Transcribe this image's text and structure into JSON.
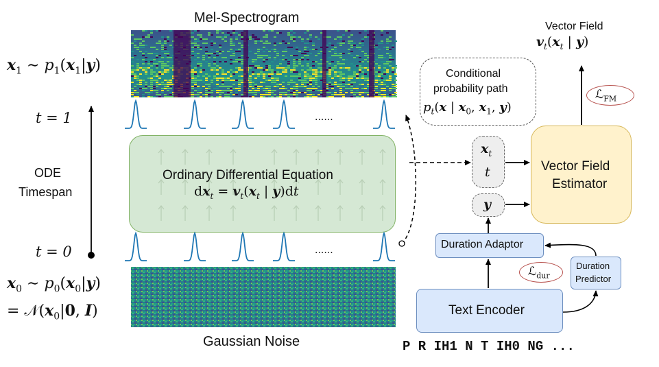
{
  "spectrogram": {
    "title": "Mel-Spectrogram",
    "colors": [
      "#440154",
      "#3b528b",
      "#21918c",
      "#5ec962",
      "#fde725"
    ]
  },
  "noise": {
    "label": "Gaussian Noise"
  },
  "left_math": {
    "x1": "x",
    "x1_sub": "1",
    "x1_rest": " ∼ p",
    "x1_sub2": "1",
    "x1_tail": "(x",
    "x1_sub3": "1",
    "x1_end": "|y)",
    "t1": "t = 1",
    "t0": "t = 0",
    "ode": "ODE",
    "timespan": "Timespan",
    "x0_line1": "x₀ ∼ p₀(x₀|y)",
    "x0_line2": "= 𝒩(x₀|0, I)"
  },
  "ode_box": {
    "title": "Ordinary Differential Equation",
    "equation": "dx_t = v_t(x_t | y)dt",
    "fill": "#d5e8d4",
    "stroke": "#82b366"
  },
  "dots": "......",
  "cond_path": {
    "line1": "Conditional",
    "line2": "probability path",
    "line3": "p_t(x | x₀, x₁, y)"
  },
  "vector_field": {
    "line1": "Vector Field",
    "line2": "v_t(x_t | y)"
  },
  "loss_fm": "ℒ_FM",
  "loss_dur": "ℒ_dur",
  "nodes": {
    "xt": "x_t",
    "t": "t",
    "y": "y",
    "estimator_line1": "Vector Field",
    "estimator_line2": "Estimator",
    "duration_adaptor": "Duration Adaptor",
    "duration_predictor_line1": "Duration",
    "duration_predictor_line2": "Predictor",
    "text_encoder": "Text Encoder"
  },
  "phonemes": "P R IH1 N T IH0 NG ...",
  "colors": {
    "estimator_fill": "#fff2cc",
    "estimator_stroke": "#d6b656",
    "blue_fill": "#dae8fc",
    "blue_stroke": "#6c8ebf",
    "loss_stroke": "#b85450",
    "peak": "#1f77b4"
  }
}
